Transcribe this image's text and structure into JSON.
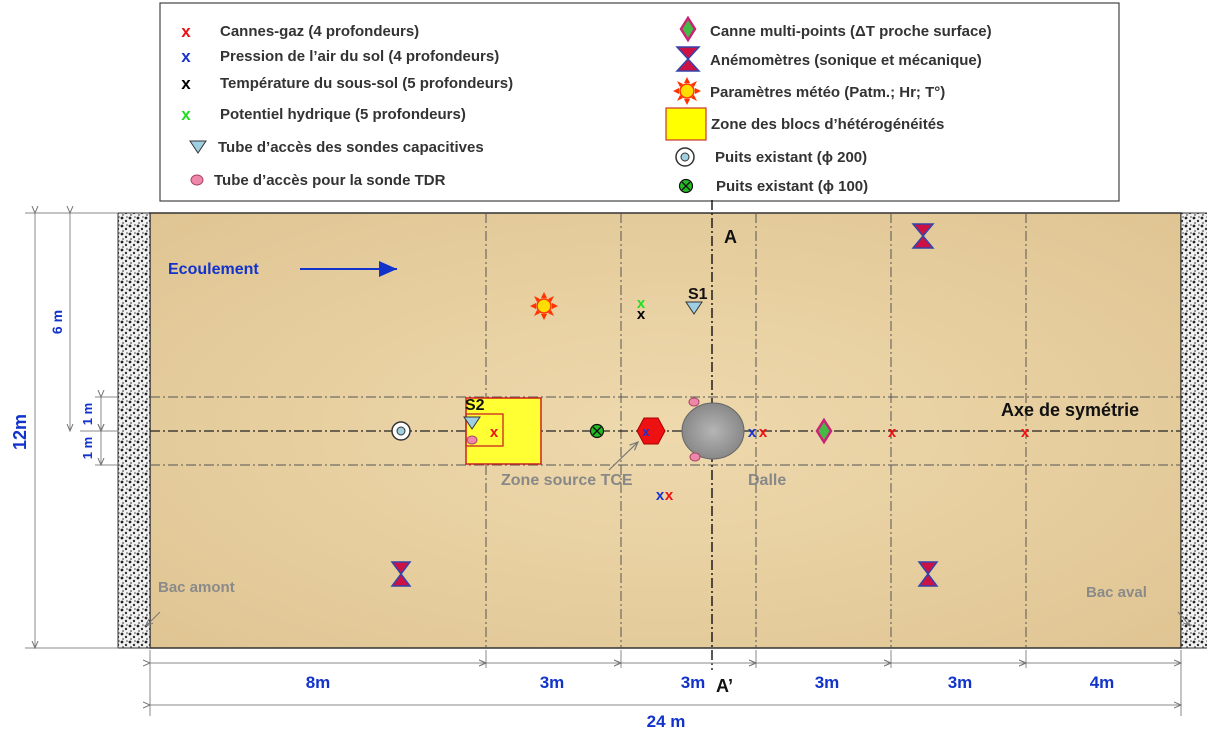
{
  "legend": {
    "left": [
      {
        "symbol": "x",
        "color": "#ee1111",
        "text": "Cannes-gaz (4 profondeurs)"
      },
      {
        "symbol": "x",
        "color": "#1a33cc",
        "text": "Pression de l’air du sol (4 profondeurs)"
      },
      {
        "symbol": "x",
        "color": "#000000",
        "text": "Température du sous-sol (5 profondeurs)"
      },
      {
        "symbol": "x",
        "color": "#22dd22",
        "text": "Potentiel hydrique (5 profondeurs)"
      },
      {
        "symbol": "triangle",
        "color": "#9ecfe3",
        "text": "Tube d’accès des sondes capacitives"
      },
      {
        "symbol": "pink-dot",
        "color": "#ee88aa",
        "text": "Tube d’accès pour la sonde TDR"
      }
    ],
    "right": [
      {
        "symbol": "diamond",
        "color": "#cc2277",
        "text": "Canne multi-points (ΔT proche surface)"
      },
      {
        "symbol": "hourglass",
        "color": "#cc1144",
        "text": "Anémomètres (sonique et mécanique)"
      },
      {
        "symbol": "sun",
        "color": "#ff3300",
        "text": "Paramètres météo (Patm.; Hr; T°)"
      },
      {
        "symbol": "yellow-square",
        "color": "#ffff00",
        "text": "Zone des blocs d’hétérogénéités"
      },
      {
        "symbol": "well-large",
        "color": "#5a7e8c",
        "text": "Puits existant (ϕ 200)"
      },
      {
        "symbol": "well-small",
        "color": "#22aa22",
        "text": "Puits existant (ϕ 100)"
      }
    ]
  },
  "labels": {
    "ecoulement": "Ecoulement",
    "section_a": "A",
    "section_a_prime": "A’",
    "axe": "Axe de symétrie",
    "s1": "S1",
    "s2": "S2",
    "zone_source": "Zone source TCE",
    "dalle": "Dalle",
    "bac_amont": "Bac amont",
    "bac_aval": "Bac aval",
    "marker_x": "x"
  },
  "dimensions": {
    "height_total": "12m",
    "height_six": "6 m",
    "height_one_upper": "1 m",
    "height_one_lower": "1 m",
    "width_total": "24 m",
    "segments": [
      "8m",
      "3m",
      "3m",
      "3m",
      "3m",
      "4m"
    ]
  },
  "colors": {
    "sand": "#e8d2a3",
    "gas_red": "#ee1111",
    "pressure_blue": "#1a33cc",
    "label_blue": "#1133cc",
    "yellow_zone": "#ffff33"
  }
}
